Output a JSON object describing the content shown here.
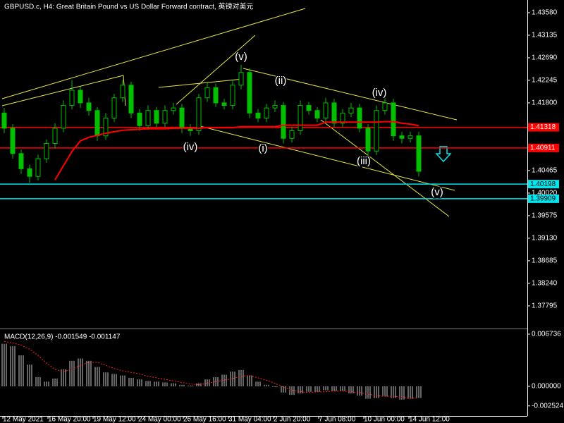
{
  "chart_data": {
    "type": "candlestick",
    "title": "GBPUSD.c, H4:  Great Britain Pound vs US Dollar Forward contract, 英镑对美元",
    "xtick_labels": [
      "12 May 2021",
      "16 May 20:00",
      "19 May 12:00",
      "24 May 00:00",
      "26 May 16:00",
      "31 May 04:00",
      "2 Jun 20:00",
      "7 Jun 08:00",
      "10 Jun 00:00",
      "14 Jun 12:00"
    ],
    "ylim": [
      1.37362,
      1.4383
    ],
    "yticks": [
      {
        "value": 1.4358,
        "label": "1.43580"
      },
      1.43135,
      {
        "value": 1.4269,
        "label": "1.42690"
      },
      1.42245,
      {
        "value": 1.418,
        "label": "1.41800"
      },
      1.40465,
      {
        "value": 1.4002,
        "label": "1.40020"
      },
      1.39575,
      {
        "value": 1.3913,
        "label": "1.39130"
      },
      1.38685,
      {
        "value": 1.3824,
        "label": "1.38240"
      },
      1.37795
    ],
    "candle_color": "#00c000",
    "candles": [
      [
        1.416,
        1.417,
        1.412,
        1.413
      ],
      [
        1.413,
        1.4138,
        1.407,
        1.408
      ],
      [
        1.408,
        1.4088,
        1.404,
        1.405
      ],
      [
        1.405,
        1.4058,
        1.4022,
        1.4035
      ],
      [
        1.4035,
        1.4078,
        1.4027,
        1.407
      ],
      [
        1.407,
        1.4108,
        1.4062,
        1.41
      ],
      [
        1.41,
        1.414,
        1.409,
        1.413
      ],
      [
        1.413,
        1.4185,
        1.4122,
        1.4175
      ],
      [
        1.4175,
        1.4225,
        1.4167,
        1.4205
      ],
      [
        1.4205,
        1.4212,
        1.417,
        1.418
      ],
      [
        1.418,
        1.419,
        1.4155,
        1.4165
      ],
      [
        1.4165,
        1.4172,
        1.4105,
        1.4115
      ],
      [
        1.4115,
        1.416,
        1.4107,
        1.415
      ],
      [
        1.415,
        1.4198,
        1.4142,
        1.419
      ],
      [
        1.419,
        1.4225,
        1.4182,
        1.4215
      ],
      [
        1.4215,
        1.4222,
        1.415,
        1.416
      ],
      [
        1.416,
        1.4168,
        1.4125,
        1.4135
      ],
      [
        1.4135,
        1.4175,
        1.4127,
        1.4165
      ],
      [
        1.4165,
        1.4172,
        1.4132,
        1.414
      ],
      [
        1.414,
        1.4175,
        1.4132,
        1.4165
      ],
      [
        1.4165,
        1.418,
        1.4157,
        1.417
      ],
      [
        1.417,
        1.4178,
        1.412,
        1.413
      ],
      [
        1.413,
        1.4138,
        1.4115,
        1.4125
      ],
      [
        1.4125,
        1.4198,
        1.4117,
        1.419
      ],
      [
        1.419,
        1.422,
        1.4182,
        1.421
      ],
      [
        1.421,
        1.4218,
        1.4172,
        1.418
      ],
      [
        1.418,
        1.4188,
        1.4167,
        1.4175
      ],
      [
        1.4175,
        1.4225,
        1.4167,
        1.4215
      ],
      [
        1.4215,
        1.4255,
        1.4207,
        1.424
      ],
      [
        1.424,
        1.4248,
        1.415,
        1.416
      ],
      [
        1.416,
        1.4168,
        1.4142,
        1.415
      ],
      [
        1.415,
        1.4178,
        1.4142,
        1.417
      ],
      [
        1.417,
        1.4185,
        1.4162,
        1.4175
      ],
      [
        1.4175,
        1.4182,
        1.41,
        1.411
      ],
      [
        1.411,
        1.4133,
        1.4102,
        1.4125
      ],
      [
        1.4125,
        1.4185,
        1.4117,
        1.4175
      ],
      [
        1.4175,
        1.4182,
        1.4157,
        1.4165
      ],
      [
        1.4165,
        1.4172,
        1.4142,
        1.415
      ],
      [
        1.415,
        1.419,
        1.4142,
        1.418
      ],
      [
        1.418,
        1.4188,
        1.4132,
        1.414
      ],
      [
        1.414,
        1.4168,
        1.4132,
        1.416
      ],
      [
        1.416,
        1.418,
        1.4152,
        1.417
      ],
      [
        1.417,
        1.4178,
        1.4122,
        1.413
      ],
      [
        1.413,
        1.4138,
        1.4075,
        1.4085
      ],
      [
        1.4085,
        1.4175,
        1.4077,
        1.4165
      ],
      [
        1.4165,
        1.419,
        1.4157,
        1.418
      ],
      [
        1.418,
        1.4188,
        1.4105,
        1.4115
      ],
      [
        1.4115,
        1.4123,
        1.41,
        1.411
      ],
      [
        1.411,
        1.4123,
        1.4102,
        1.4115
      ],
      [
        1.4115,
        1.4123,
        1.4035,
        1.4045
      ]
    ],
    "moving_average": {
      "color": "#ff0000",
      "values": [
        null,
        null,
        null,
        null,
        null,
        null,
        1.4028,
        1.4056,
        1.4084,
        1.4105,
        1.4112,
        1.4116,
        1.412,
        1.4123,
        1.4126,
        1.4127,
        1.4128,
        1.4129,
        1.4129,
        1.4129,
        1.413,
        1.413,
        1.413,
        1.413,
        1.4131,
        1.4131,
        1.4131,
        1.4131,
        1.4133,
        1.4133,
        1.4133,
        1.4133,
        1.4133,
        1.4136,
        1.4136,
        1.4136,
        1.4136,
        1.4136,
        1.4142,
        1.4142,
        1.4142,
        1.4142,
        1.4142,
        1.4142,
        1.4142,
        1.4143,
        1.4143,
        1.414,
        1.4138,
        1.4135
      ]
    },
    "levels": [
      {
        "value": 1.41318,
        "color": "#ff0000"
      },
      {
        "value": 1.40911,
        "color": "#ff0000"
      },
      {
        "value": 1.40198,
        "color": "#00e5ee"
      },
      {
        "value": 1.39909,
        "color": "#00e5ee"
      }
    ],
    "annotations": [
      "(v)",
      "(ii)",
      "(iv)",
      "(iv)",
      "(i)",
      "(iii)",
      "(v)"
    ],
    "macd": {
      "title": "MACD(12,26,9) -0.001549 -0.001147",
      "y2lim": [
        -0.00382,
        0.00728
      ],
      "y2ticks": [
        0.006736,
        {
          "value": 0,
          "label": "0.000000"
        },
        -0.002524
      ],
      "histogram": [
        0.0055,
        0.0052,
        0.004,
        0.0028,
        0.0012,
        0.0006,
        0.001,
        0.0022,
        0.0033,
        0.0036,
        0.0033,
        0.0025,
        0.0018,
        0.0016,
        0.0014,
        0.0011,
        0.0009,
        0.0007,
        0.0006,
        0.0005,
        0.0004,
        0.0002,
        0.0001,
        0.0004,
        0.0009,
        0.0012,
        0.0015,
        0.0019,
        0.0021,
        0.0014,
        0.0006,
        0.0002,
        -0.0001,
        -0.0008,
        -0.0011,
        -0.0009,
        -0.0007,
        -0.0007,
        -0.0005,
        -0.0006,
        -0.0006,
        -0.0009,
        -0.0012,
        -0.0016,
        -0.0015,
        -0.0013,
        -0.0015,
        -0.0017,
        -0.0016,
        -0.0015
      ],
      "signal": {
        "color": "#ff2020",
        "values": [
          0.0058,
          0.0056,
          0.0053,
          0.0048,
          0.004,
          0.003,
          0.0022,
          0.0019,
          0.0022,
          0.0027,
          0.0031,
          0.0031,
          0.0027,
          0.0023,
          0.002,
          0.0018,
          0.0016,
          0.0013,
          0.0011,
          0.0009,
          0.0007,
          0.0005,
          0.0003,
          0.0002,
          0.0004,
          0.0006,
          0.0008,
          0.001,
          0.0013,
          0.0014,
          0.0011,
          0.0008,
          0.0004,
          -0.0001,
          -0.0005,
          -0.0007,
          -0.0008,
          -0.0007,
          -0.0007,
          -0.0006,
          -0.0006,
          -0.0007,
          -0.0008,
          -0.001,
          -0.0012,
          -0.0013,
          -0.0013,
          -0.0014,
          -0.0015,
          -0.0015
        ]
      }
    }
  }
}
